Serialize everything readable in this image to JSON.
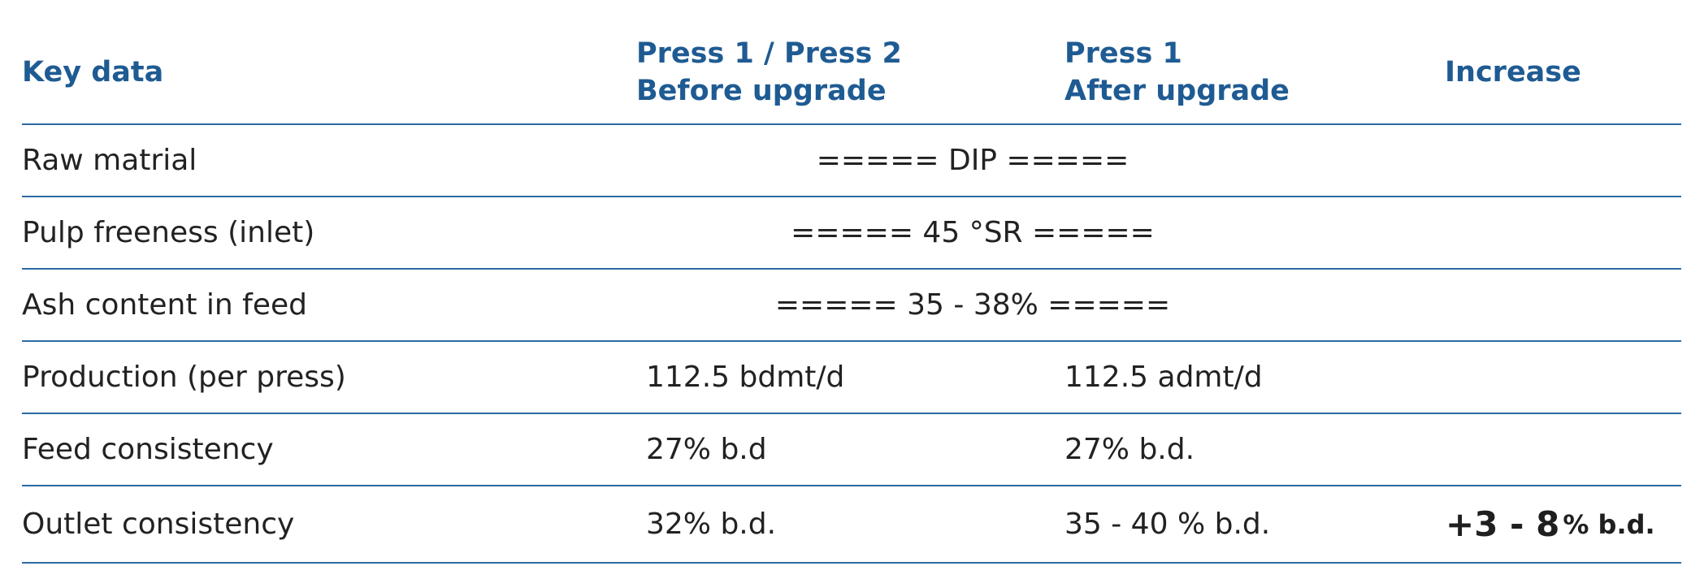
{
  "header": {
    "key": "Key data",
    "before_line1": "Press 1 / Press 2",
    "before_line2": "Before upgrade",
    "after_line1": "Press 1",
    "after_line2": "After upgrade",
    "increase": "Increase"
  },
  "rows": [
    {
      "key": "Raw matrial",
      "span": "=====  DIP ====="
    },
    {
      "key": "Pulp freeness (inlet)",
      "span": "===== 45 °SR ====="
    },
    {
      "key": "Ash content in feed",
      "span": "===== 35 - 38% ====="
    },
    {
      "key": "Production (per press)",
      "before": "112.5 bdmt/d",
      "after": "112.5 admt/d"
    },
    {
      "key": "Feed consistency",
      "before": "27% b.d",
      "after": "27% b.d."
    },
    {
      "key": "Outlet consistency",
      "before": "32% b.d.",
      "after": "35 - 40 % b.d.",
      "increase_value": "+3 - 8",
      "increase_unit": "% b.d."
    }
  ]
}
